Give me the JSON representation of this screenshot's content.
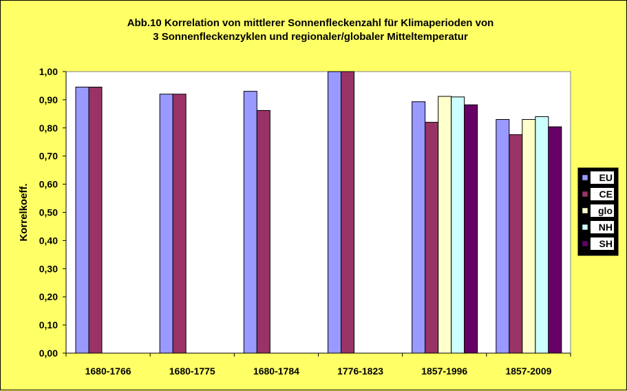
{
  "chart_data": {
    "type": "bar",
    "title_lines": [
      "Abb.10 Korrelation von mittlerer Sonnenfleckenzahl für Klimaperioden von",
      "3 Sonnenfleckenzyklen und regionaler/globaler Mitteltemperatur"
    ],
    "ylabel": "Korrelkoeff.",
    "xlabel": "",
    "ylim": [
      0,
      1
    ],
    "yticks": [
      "0,00",
      "0,10",
      "0,20",
      "0,30",
      "0,40",
      "0,50",
      "0,60",
      "0,70",
      "0,80",
      "0,90",
      "1,00"
    ],
    "categories": [
      "1680-1766",
      "1680-1775",
      "1680-1784",
      "1776-1823",
      "1857-1996",
      "1857-2009"
    ],
    "series": [
      {
        "name": "EU",
        "color": "#9999ff",
        "values": [
          0.945,
          0.92,
          0.93,
          1.0,
          0.893,
          0.83
        ]
      },
      {
        "name": "CE",
        "color": "#993366",
        "values": [
          0.945,
          0.92,
          0.862,
          1.0,
          0.82,
          0.776
        ]
      },
      {
        "name": "glo",
        "color": "#ffffcc",
        "values": [
          null,
          null,
          null,
          null,
          0.912,
          0.83
        ]
      },
      {
        "name": "NH",
        "color": "#ccffff",
        "values": [
          null,
          null,
          null,
          null,
          0.91,
          0.84
        ]
      },
      {
        "name": "SH",
        "color": "#660066",
        "values": [
          null,
          null,
          null,
          null,
          0.882,
          0.804
        ]
      }
    ],
    "grid": false,
    "legend_position": "right",
    "plot_background": "#ffffff",
    "page_background": "#ffff66"
  }
}
